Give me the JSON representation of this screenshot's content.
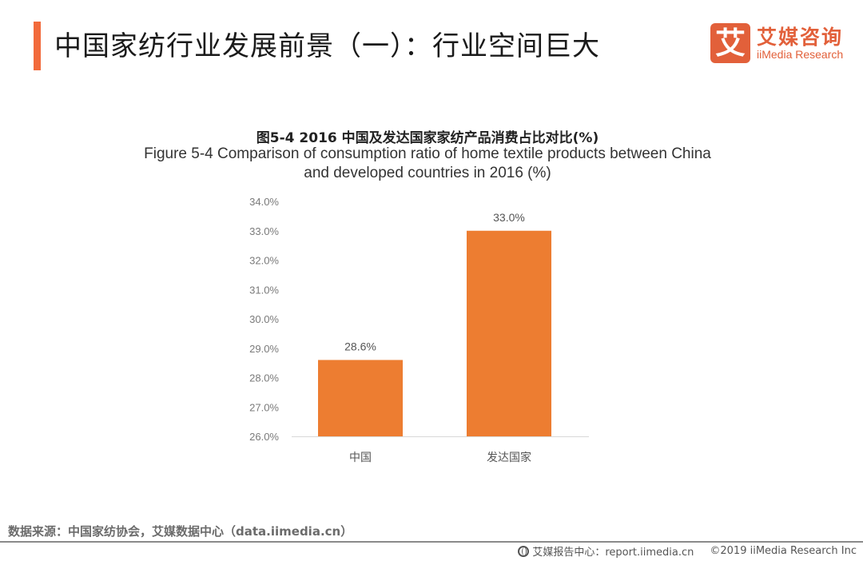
{
  "header": {
    "title": "中国家纺行业发展前景（一）：行业空间巨大",
    "accent_color": "#f26a3b"
  },
  "logo": {
    "mark": "艾",
    "name_cn": "艾媒咨询",
    "name_en": "iiMedia Research",
    "color": "#e2603a"
  },
  "chart_data": {
    "type": "bar",
    "title_cn": "图5-4 2016 中国及发达国家家纺产品消费占比对比(%)",
    "title_en_line1": "Figure 5-4 Comparison of consumption ratio of home textile products between China",
    "title_en_line2": "and developed countries in 2016 (%)",
    "categories": [
      "中国",
      "发达国家"
    ],
    "values": [
      28.6,
      33.0
    ],
    "data_labels": [
      "28.6%",
      "33.0%"
    ],
    "xlabel": "",
    "ylabel": "",
    "ylim": [
      26.0,
      34.0
    ],
    "yticks": [
      26.0,
      27.0,
      28.0,
      29.0,
      30.0,
      31.0,
      32.0,
      33.0,
      34.0
    ],
    "ytick_labels": [
      "26.0%",
      "27.0%",
      "28.0%",
      "29.0%",
      "30.0%",
      "31.0%",
      "32.0%",
      "33.0%",
      "34.0%"
    ],
    "grid": false,
    "legend": "none",
    "bar_color": "#ed7d31"
  },
  "footer": {
    "source": "数据来源：中国家纺协会，艾媒数据中心（data.iimedia.cn）",
    "report_center": "艾媒报告中心：report.iimedia.cn",
    "copyright": "©2019  iiMedia Research  Inc"
  }
}
